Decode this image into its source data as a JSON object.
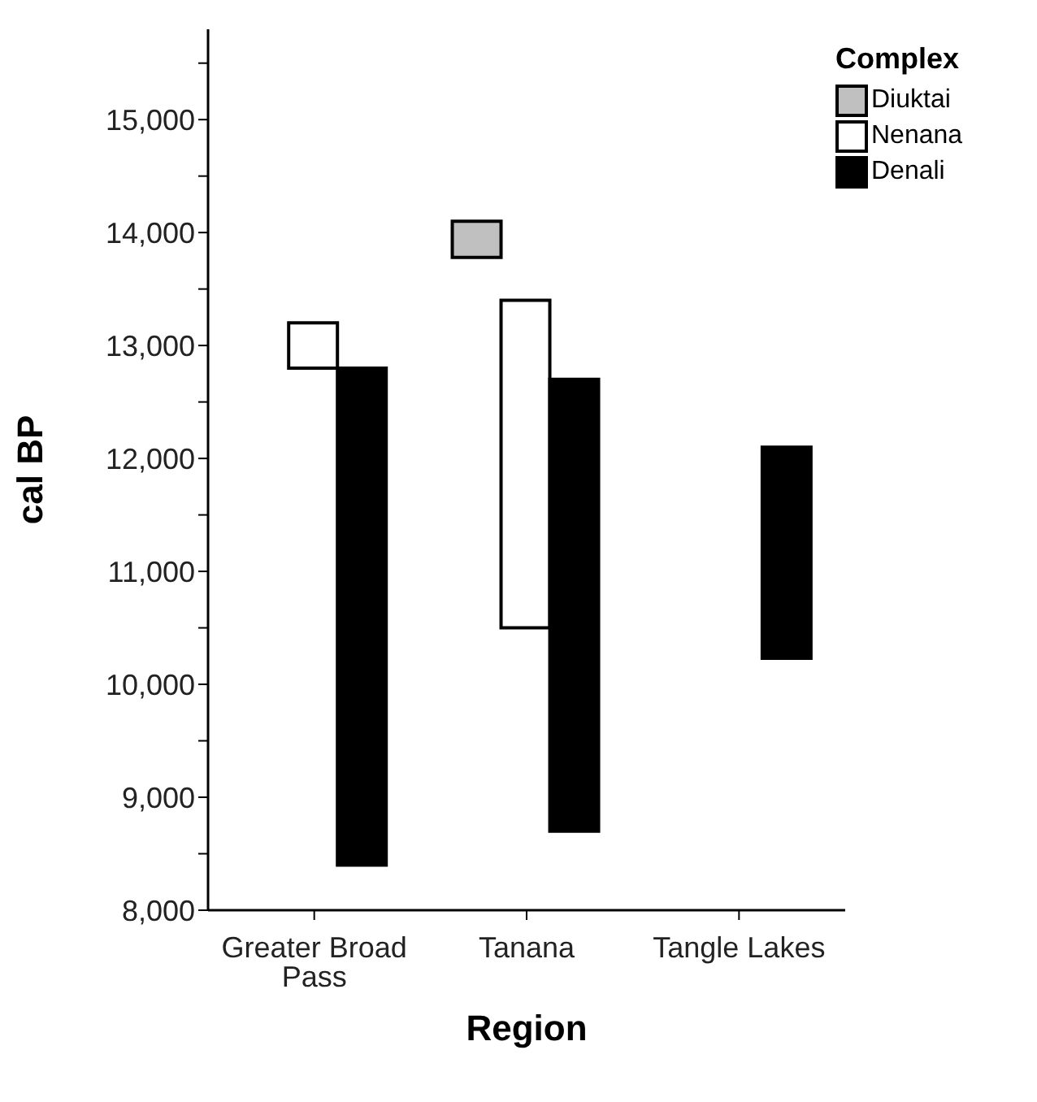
{
  "chart_data": {
    "type": "bar",
    "xlabel": "Region",
    "ylabel": "cal BP",
    "legend_title": "Complex",
    "categories": [
      "Greater Broad Pass",
      "Tanana",
      "Tangle Lakes"
    ],
    "series": [
      {
        "name": "Diuktai",
        "color": "#c0c0c0",
        "base": [
          null,
          13780,
          null
        ],
        "values": [
          null,
          320,
          null
        ]
      },
      {
        "name": "Nenana",
        "color": "#ffffff",
        "base": [
          12800,
          10500,
          null
        ],
        "values": [
          400,
          2900,
          null
        ]
      },
      {
        "name": "Denali",
        "color": "#000000",
        "base": [
          8400,
          8700,
          10230
        ],
        "values": [
          4400,
          4000,
          1870
        ]
      }
    ],
    "ylim": [
      8000,
      15800
    ],
    "yticks": [
      {
        "value": 8000,
        "label": "8,000"
      },
      {
        "value": 8500,
        "label": null
      },
      {
        "value": 9000,
        "label": "9,000"
      },
      {
        "value": 9500,
        "label": null
      },
      {
        "value": 10000,
        "label": "10,000"
      },
      {
        "value": 10500,
        "label": null
      },
      {
        "value": 11000,
        "label": "11,000"
      },
      {
        "value": 11500,
        "label": null
      },
      {
        "value": 12000,
        "label": "12,000"
      },
      {
        "value": 12500,
        "label": null
      },
      {
        "value": 13000,
        "label": "13,000"
      },
      {
        "value": 13500,
        "label": null
      },
      {
        "value": 14000,
        "label": "14,000"
      },
      {
        "value": 14500,
        "label": null
      },
      {
        "value": 15000,
        "label": "15,000"
      },
      {
        "value": 15500,
        "label": null
      }
    ],
    "grid": false,
    "legend": "top right"
  }
}
